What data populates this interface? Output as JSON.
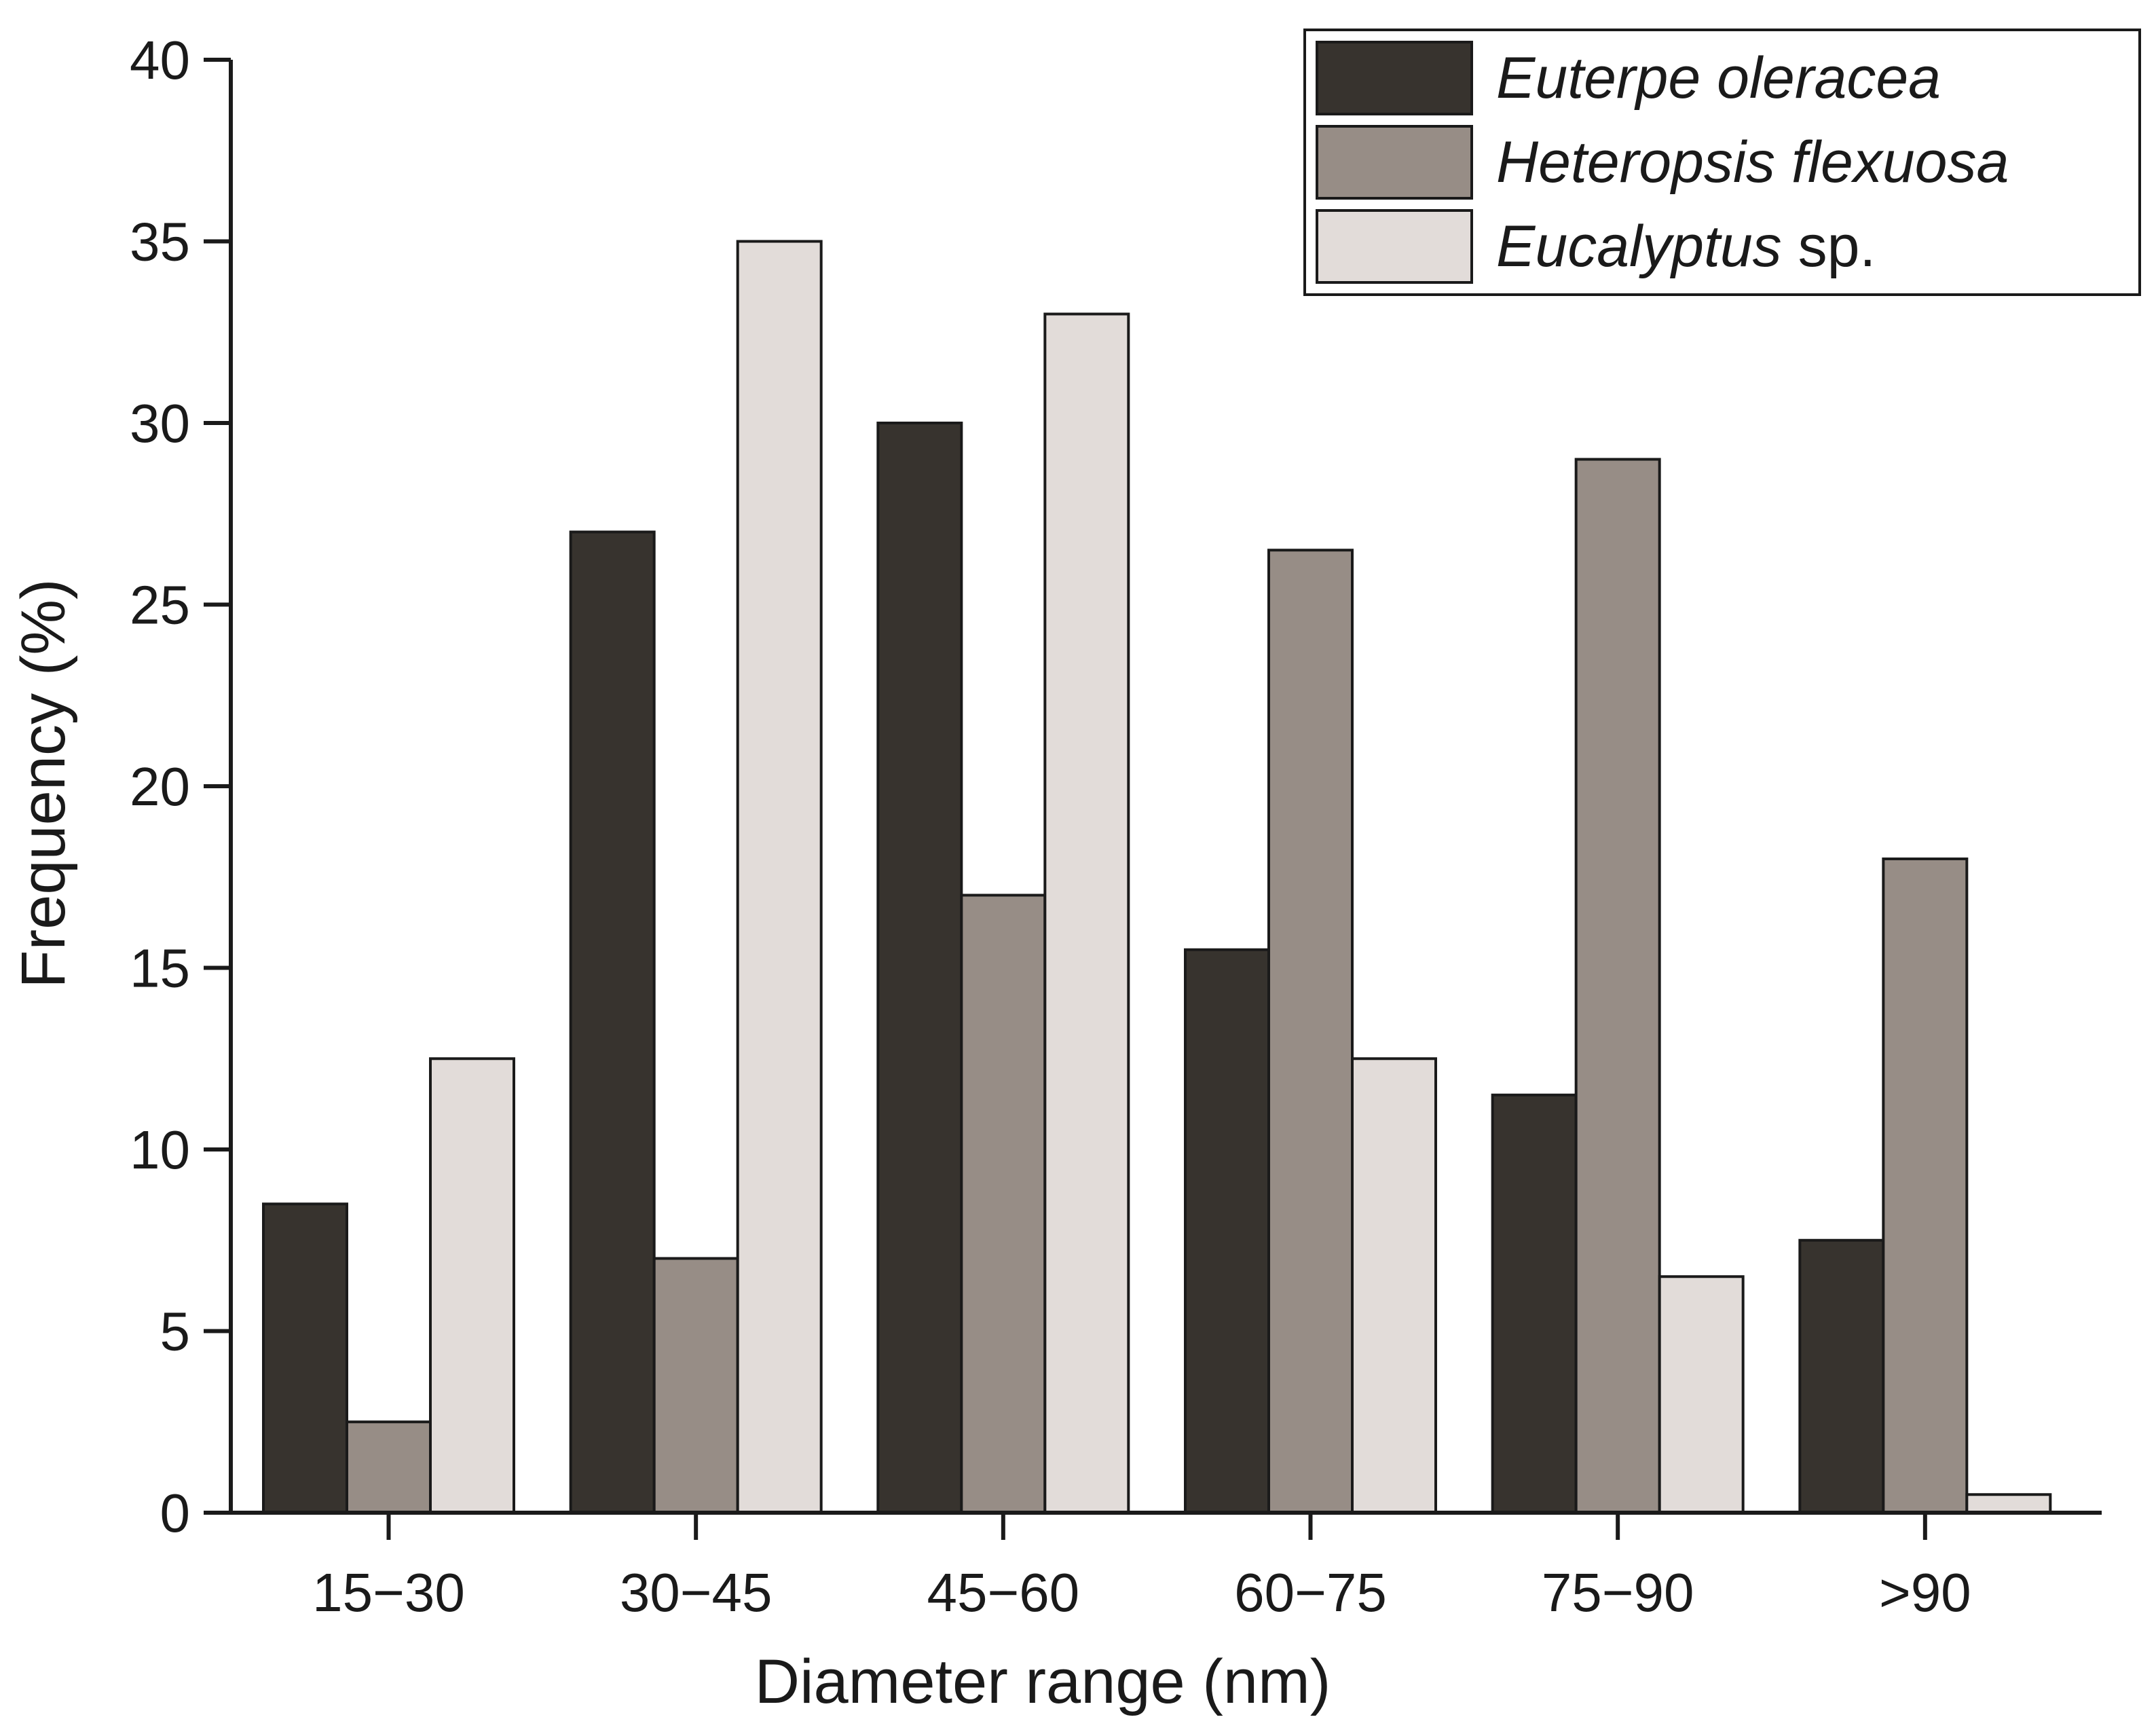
{
  "chart_data": {
    "type": "bar",
    "title": "",
    "xlabel": "Diameter range (nm)",
    "ylabel": "Frequency (%)",
    "ylim": [
      0,
      40
    ],
    "yticks": [
      0,
      5,
      10,
      15,
      20,
      25,
      30,
      35,
      40
    ],
    "ytick_labels": [
      "0",
      "5",
      "10",
      "15",
      "20",
      "25",
      "30",
      "35",
      "40"
    ],
    "categories": [
      "15−30",
      "30−45",
      "45−60",
      "60−75",
      "75−90",
      ">90"
    ],
    "legend_position": "top-right",
    "grid": false,
    "series": [
      {
        "name": "Euterpe oleracea",
        "name_italic": "Euterpe oleracea",
        "name_suffix": "",
        "color": "#37332e",
        "values": [
          8.5,
          27,
          30,
          15.5,
          11.5,
          7.5
        ]
      },
      {
        "name": "Heteropsis flexuosa",
        "name_italic": "Heteropsis flexuosa",
        "name_suffix": "",
        "color": "#978d86",
        "values": [
          2.5,
          7,
          17,
          26.5,
          29,
          18
        ]
      },
      {
        "name": "Eucalyptus sp.",
        "name_italic": "Eucalyptus",
        "name_suffix": " sp.",
        "color": "#e2dcd9",
        "values": [
          12.5,
          35,
          33,
          12.5,
          6.5,
          0.5
        ]
      }
    ]
  }
}
